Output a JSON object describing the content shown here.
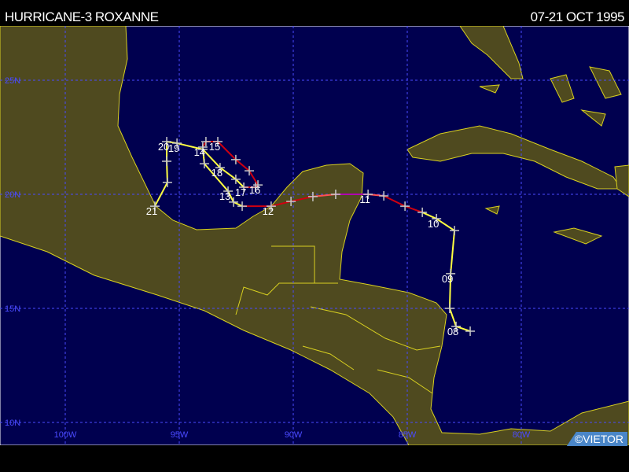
{
  "header": {
    "title": "HURRICANE-3 ROXANNE",
    "dates": "07-21 OCT 1995"
  },
  "credit": "©VIETOR",
  "colors": {
    "ocean": "#00004f",
    "land": "#4f4a1f",
    "coast": "#d8d020",
    "grid": "#4a4aff",
    "tropical_storm": "#ffff40",
    "hurricane_1": "#d00010",
    "hurricane_2": "#ff5050",
    "hurricane_3": "#b000b0"
  },
  "map": {
    "lon_range": [
      -102.9,
      -75.3
    ],
    "lat_range": [
      8.8,
      27.3
    ],
    "lon_labels": [
      {
        "lon": -100,
        "text": "100W"
      },
      {
        "lon": -95,
        "text": "95W"
      },
      {
        "lon": -90,
        "text": "90W"
      },
      {
        "lon": -85,
        "text": "85W"
      },
      {
        "lon": -80,
        "text": "80W"
      }
    ],
    "lat_labels": [
      {
        "lat": 25,
        "text": "25N"
      },
      {
        "lat": 20,
        "text": "20N"
      },
      {
        "lat": 15,
        "text": "15N"
      },
      {
        "lat": 10,
        "text": "10N"
      }
    ]
  },
  "track": [
    {
      "lon": -82.24,
      "lat": 14.0,
      "c": "tropical_storm"
    },
    {
      "lon": -82.86,
      "lat": 14.21,
      "c": "tropical_storm"
    },
    {
      "lon": -83.14,
      "lat": 15.0,
      "c": "tropical_storm"
    },
    {
      "lon": -83.1,
      "lat": 16.52,
      "c": "tropical_storm"
    },
    {
      "lon": -82.93,
      "lat": 18.41,
      "c": "tropical_storm"
    },
    {
      "lon": -83.72,
      "lat": 18.93,
      "c": "tropical_storm"
    },
    {
      "lon": -84.34,
      "lat": 19.21,
      "c": "hurricane_1"
    },
    {
      "lon": -85.1,
      "lat": 19.48,
      "c": "hurricane_1"
    },
    {
      "lon": -86.03,
      "lat": 19.93,
      "c": "hurricane_2"
    },
    {
      "lon": -86.72,
      "lat": 20.0,
      "c": "hurricane_3"
    },
    {
      "lon": -88.14,
      "lat": 20.0,
      "c": "hurricane_2"
    },
    {
      "lon": -89.14,
      "lat": 19.9,
      "c": "hurricane_1"
    },
    {
      "lon": -90.1,
      "lat": 19.69,
      "c": "hurricane_1"
    },
    {
      "lon": -90.97,
      "lat": 19.48,
      "c": "hurricane_1"
    },
    {
      "lon": -92.24,
      "lat": 19.48,
      "c": "tropical_storm"
    },
    {
      "lon": -92.62,
      "lat": 19.66,
      "c": "tropical_storm"
    },
    {
      "lon": -92.86,
      "lat": 20.14,
      "c": "tropical_storm"
    },
    {
      "lon": -93.9,
      "lat": 21.34,
      "c": "tropical_storm"
    },
    {
      "lon": -93.97,
      "lat": 22.07,
      "c": "hurricane_1"
    },
    {
      "lon": -93.83,
      "lat": 22.31,
      "c": "hurricane_1"
    },
    {
      "lon": -93.31,
      "lat": 22.31,
      "c": "hurricane_1"
    },
    {
      "lon": -92.52,
      "lat": 21.52,
      "c": "hurricane_1"
    },
    {
      "lon": -91.93,
      "lat": 21.03,
      "c": "hurricane_1"
    },
    {
      "lon": -91.55,
      "lat": 20.41,
      "c": "hurricane_1"
    },
    {
      "lon": -91.66,
      "lat": 20.31,
      "c": "hurricane_1"
    },
    {
      "lon": -92.17,
      "lat": 20.31,
      "c": "tropical_storm"
    },
    {
      "lon": -92.52,
      "lat": 20.66,
      "c": "tropical_storm"
    },
    {
      "lon": -93.21,
      "lat": 21.17,
      "c": "tropical_storm"
    },
    {
      "lon": -93.97,
      "lat": 21.97,
      "c": "tropical_storm"
    },
    {
      "lon": -95.1,
      "lat": 22.24,
      "c": "tropical_storm"
    },
    {
      "lon": -95.55,
      "lat": 22.31,
      "c": "tropical_storm"
    },
    {
      "lon": -95.55,
      "lat": 21.45,
      "c": "tropical_storm"
    },
    {
      "lon": -95.52,
      "lat": 20.52,
      "c": "tropical_storm"
    },
    {
      "lon": -96.07,
      "lat": 19.48,
      "c": "tropical_storm"
    }
  ],
  "day_labels": [
    {
      "text": "08",
      "lon": -82.86,
      "lat": 14.21
    },
    {
      "text": "09",
      "lon": -83.1,
      "lat": 16.52
    },
    {
      "text": "10",
      "lon": -83.72,
      "lat": 18.93
    },
    {
      "text": "11",
      "lon": -86.72,
      "lat": 20.0
    },
    {
      "text": "12",
      "lon": -90.97,
      "lat": 19.48
    },
    {
      "text": "13",
      "lon": -92.86,
      "lat": 20.14
    },
    {
      "text": "14",
      "lon": -93.97,
      "lat": 22.07
    },
    {
      "text": "15",
      "lon": -93.31,
      "lat": 22.31
    },
    {
      "text": "16",
      "lon": -91.55,
      "lat": 20.41
    },
    {
      "text": "17",
      "lon": -92.17,
      "lat": 20.31
    },
    {
      "text": "18",
      "lon": -93.21,
      "lat": 21.17
    },
    {
      "text": "19",
      "lon": -95.1,
      "lat": 22.24
    },
    {
      "text": "20",
      "lon": -95.55,
      "lat": 22.31
    },
    {
      "text": "21",
      "lon": -96.07,
      "lat": 19.48
    }
  ]
}
